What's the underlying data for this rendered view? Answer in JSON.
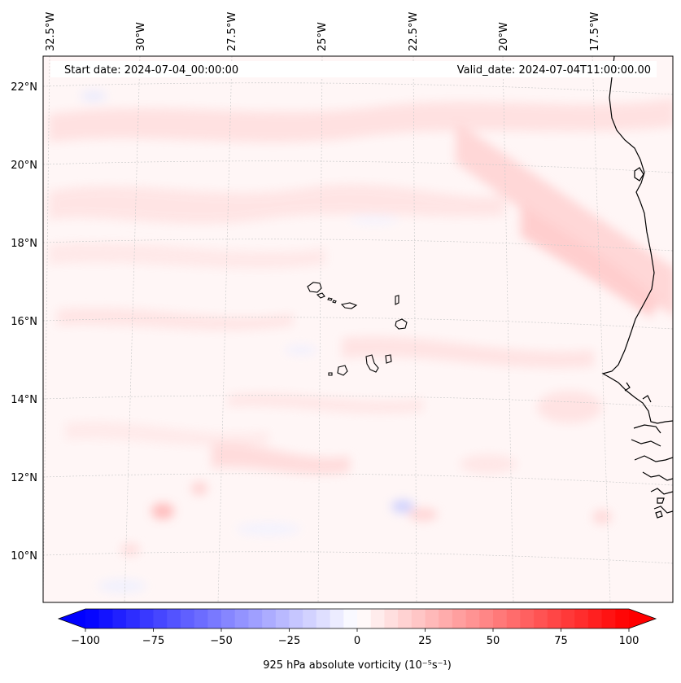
{
  "header": {
    "start_date": "Start date: 2024-07-04_00:00:00",
    "valid_date": "Valid_date: 2024-07-04T11:00:00.00"
  },
  "map": {
    "longitude_labels": [
      "32.5°W",
      "30°W",
      "27.5°W",
      "25°W",
      "22.5°W",
      "20°W",
      "17.5°W"
    ],
    "latitude_labels": [
      "22°N",
      "20°N",
      "18°N",
      "16°N",
      "14°N",
      "12°N",
      "10°N"
    ],
    "field": "925 hPa absolute vorticity",
    "features": [
      "Cape Verde islands",
      "West African coastline"
    ]
  },
  "colorbar": {
    "label": "925 hPa absolute vorticity (10⁻⁵s⁻¹)",
    "ticks": [
      "−100",
      "−75",
      "−50",
      "−25",
      "0",
      "25",
      "50",
      "75",
      "100"
    ],
    "min": -100,
    "max": 100,
    "levels": 40,
    "colormap": "bwr",
    "low_color": "#0000ff",
    "mid_color": "#ffffff",
    "high_color": "#ff0000"
  }
}
